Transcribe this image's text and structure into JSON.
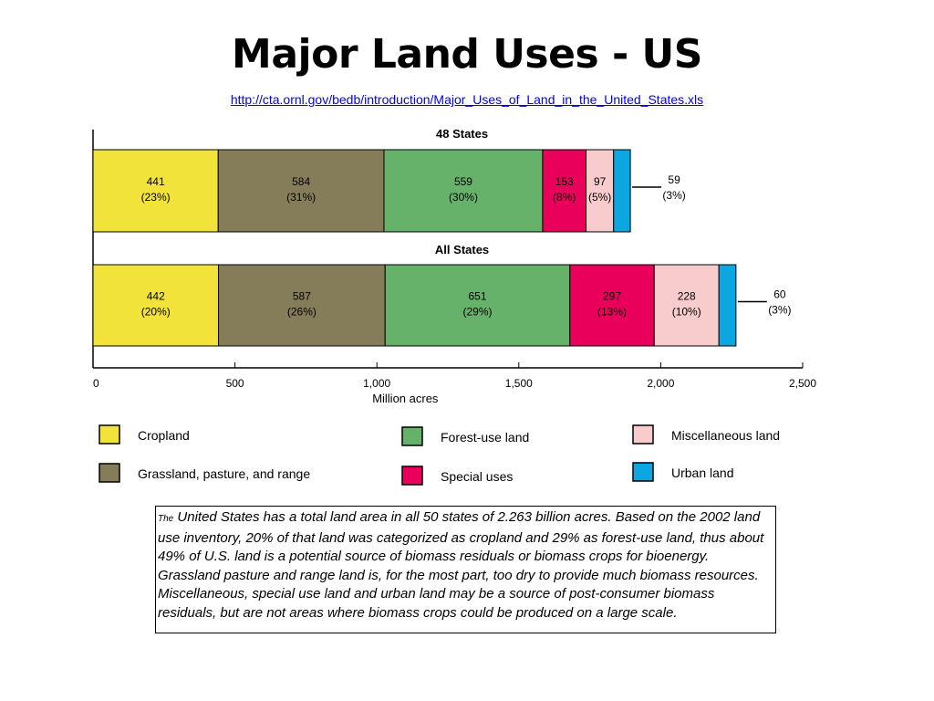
{
  "slide": {
    "title": "Major Land Uses - US",
    "source_link": "http://cta.ornl.gov/bedb/introduction/Major_Uses_of_Land_in_the_United_States.xls",
    "caption_lead": "The",
    "caption_body": " United States has a total land area in all 50 states of 2.263 billion acres.  Based on the 2002 land use inventory, 20% of that land was categorized as cropland and 29% as forest-use land, thus about 49% of U.S. land is a potential source of biomass residuals or biomass crops for bioenergy.  Grassland pasture and range land is, for the most part, too dry to provide much biomass resources. Miscellaneous, special use land and urban land may be a source of post-consumer biomass residuals, but are not areas where biomass crops could be produced on a large scale."
  },
  "chart_data": {
    "type": "bar",
    "orientation": "horizontal",
    "stacked": true,
    "xlabel": "Million acres",
    "xlim": [
      0,
      2500
    ],
    "xticks": [
      0,
      500,
      1000,
      1500,
      2000,
      2500
    ],
    "xtick_labels": [
      "0",
      "500",
      "1,000",
      "1,500",
      "2,000",
      "2,500"
    ],
    "legend_position": "bottom",
    "categories": [
      "48 States",
      "All States"
    ],
    "series": [
      {
        "name": "Cropland",
        "color": "#f2e33a",
        "values": [
          441,
          442
        ],
        "labels": [
          [
            "441",
            "(23%)"
          ],
          [
            "442",
            "(20%)"
          ]
        ]
      },
      {
        "name": "Grassland, pasture, and range",
        "color": "#857d5a",
        "values": [
          584,
          587
        ],
        "labels": [
          [
            "584",
            "(31%)"
          ],
          [
            "587",
            "(26%)"
          ]
        ]
      },
      {
        "name": "Forest-use land",
        "color": "#67b26b",
        "values": [
          559,
          651
        ],
        "labels": [
          [
            "559",
            "(30%)"
          ],
          [
            "651",
            "(29%)"
          ]
        ]
      },
      {
        "name": "Special uses",
        "color": "#e8005a",
        "values": [
          153,
          297
        ],
        "labels": [
          [
            "153",
            "(8%)"
          ],
          [
            "297",
            "(13%)"
          ]
        ]
      },
      {
        "name": "Miscellaneous land",
        "color": "#f8cccc",
        "values": [
          97,
          228
        ],
        "labels": [
          [
            "97",
            "(5%)"
          ],
          [
            "228",
            "(10%)"
          ]
        ]
      },
      {
        "name": "Urban land",
        "color": "#0ca7e0",
        "values": [
          59,
          60
        ],
        "labels": [
          [
            "59",
            "(3%)"
          ],
          [
            "60",
            "(3%)"
          ]
        ],
        "callout": true
      }
    ],
    "legend_order": [
      "Cropland",
      "Grassland, pasture, and range",
      "Forest-use land",
      "Special uses",
      "Miscellaneous land",
      "Urban land"
    ]
  }
}
